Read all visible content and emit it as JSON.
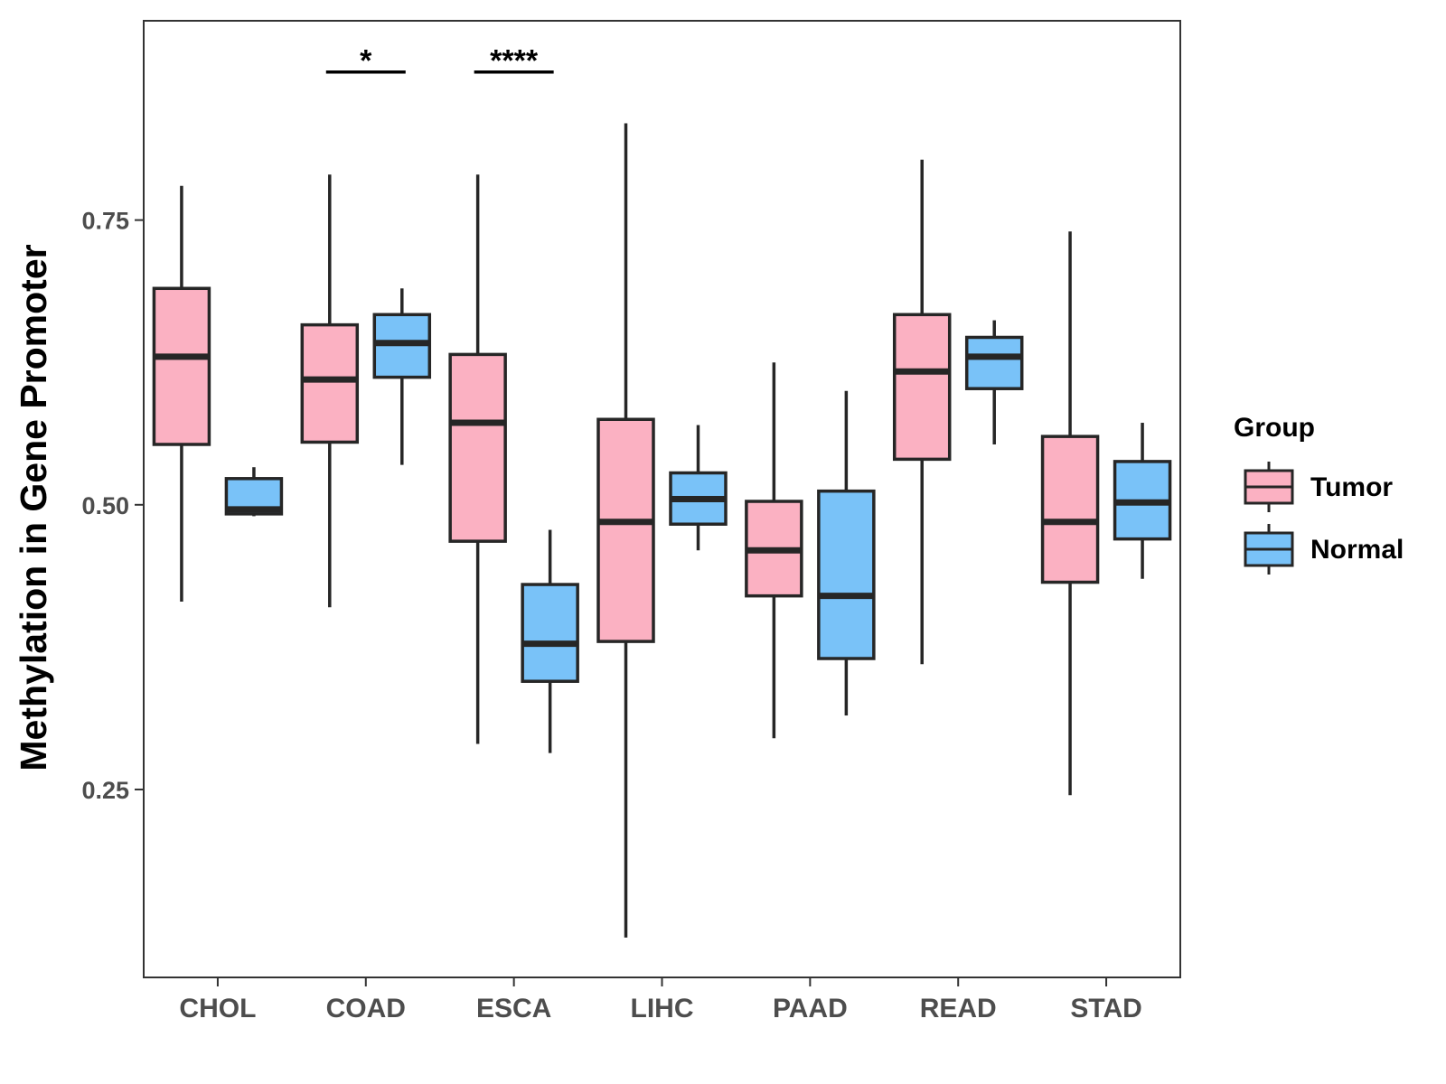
{
  "chart_data": {
    "type": "boxplot",
    "title": "",
    "xlabel": "",
    "ylabel": "Methylation in Gene Promoter",
    "ylim": [
      0.085,
      0.925
    ],
    "yticks": [
      0.25,
      0.5,
      0.75
    ],
    "ytick_labels": [
      "0.25",
      "0.50",
      "0.75"
    ],
    "categories": [
      "CHOL",
      "COAD",
      "ESCA",
      "LIHC",
      "PAAD",
      "READ",
      "STAD"
    ],
    "legend": {
      "title": "Group",
      "position": "right",
      "entries": [
        "Tumor",
        "Normal"
      ]
    },
    "colors": {
      "Tumor": "#fbb1c2",
      "Normal": "#79c2f8",
      "stroke": "#262626",
      "axis": "#333333"
    },
    "series": [
      {
        "name": "Tumor",
        "boxes": [
          {
            "whisker_low": 0.415,
            "q1": 0.553,
            "median": 0.63,
            "q3": 0.69,
            "whisker_high": 0.78
          },
          {
            "whisker_low": 0.41,
            "q1": 0.555,
            "median": 0.61,
            "q3": 0.658,
            "whisker_high": 0.79
          },
          {
            "whisker_low": 0.29,
            "q1": 0.468,
            "median": 0.572,
            "q3": 0.632,
            "whisker_high": 0.79
          },
          {
            "whisker_low": 0.12,
            "q1": 0.38,
            "median": 0.485,
            "q3": 0.575,
            "whisker_high": 0.835
          },
          {
            "whisker_low": 0.295,
            "q1": 0.42,
            "median": 0.46,
            "q3": 0.503,
            "whisker_high": 0.625
          },
          {
            "whisker_low": 0.36,
            "q1": 0.54,
            "median": 0.617,
            "q3": 0.667,
            "whisker_high": 0.803
          },
          {
            "whisker_low": 0.245,
            "q1": 0.432,
            "median": 0.485,
            "q3": 0.56,
            "whisker_high": 0.74
          }
        ]
      },
      {
        "name": "Normal",
        "boxes": [
          {
            "whisker_low": 0.49,
            "q1": 0.492,
            "median": 0.496,
            "q3": 0.523,
            "whisker_high": 0.533
          },
          {
            "whisker_low": 0.535,
            "q1": 0.612,
            "median": 0.642,
            "q3": 0.667,
            "whisker_high": 0.69
          },
          {
            "whisker_low": 0.282,
            "q1": 0.345,
            "median": 0.378,
            "q3": 0.43,
            "whisker_high": 0.478
          },
          {
            "whisker_low": 0.46,
            "q1": 0.483,
            "median": 0.505,
            "q3": 0.528,
            "whisker_high": 0.57
          },
          {
            "whisker_low": 0.315,
            "q1": 0.365,
            "median": 0.42,
            "q3": 0.512,
            "whisker_high": 0.6
          },
          {
            "whisker_low": 0.553,
            "q1": 0.602,
            "median": 0.63,
            "q3": 0.647,
            "whisker_high": 0.662
          },
          {
            "whisker_low": 0.435,
            "q1": 0.47,
            "median": 0.502,
            "q3": 0.538,
            "whisker_high": 0.572
          }
        ]
      }
    ],
    "annotations": [
      {
        "category": "COAD",
        "label": "*",
        "y": 0.88
      },
      {
        "category": "ESCA",
        "label": "****",
        "y": 0.88
      }
    ]
  }
}
